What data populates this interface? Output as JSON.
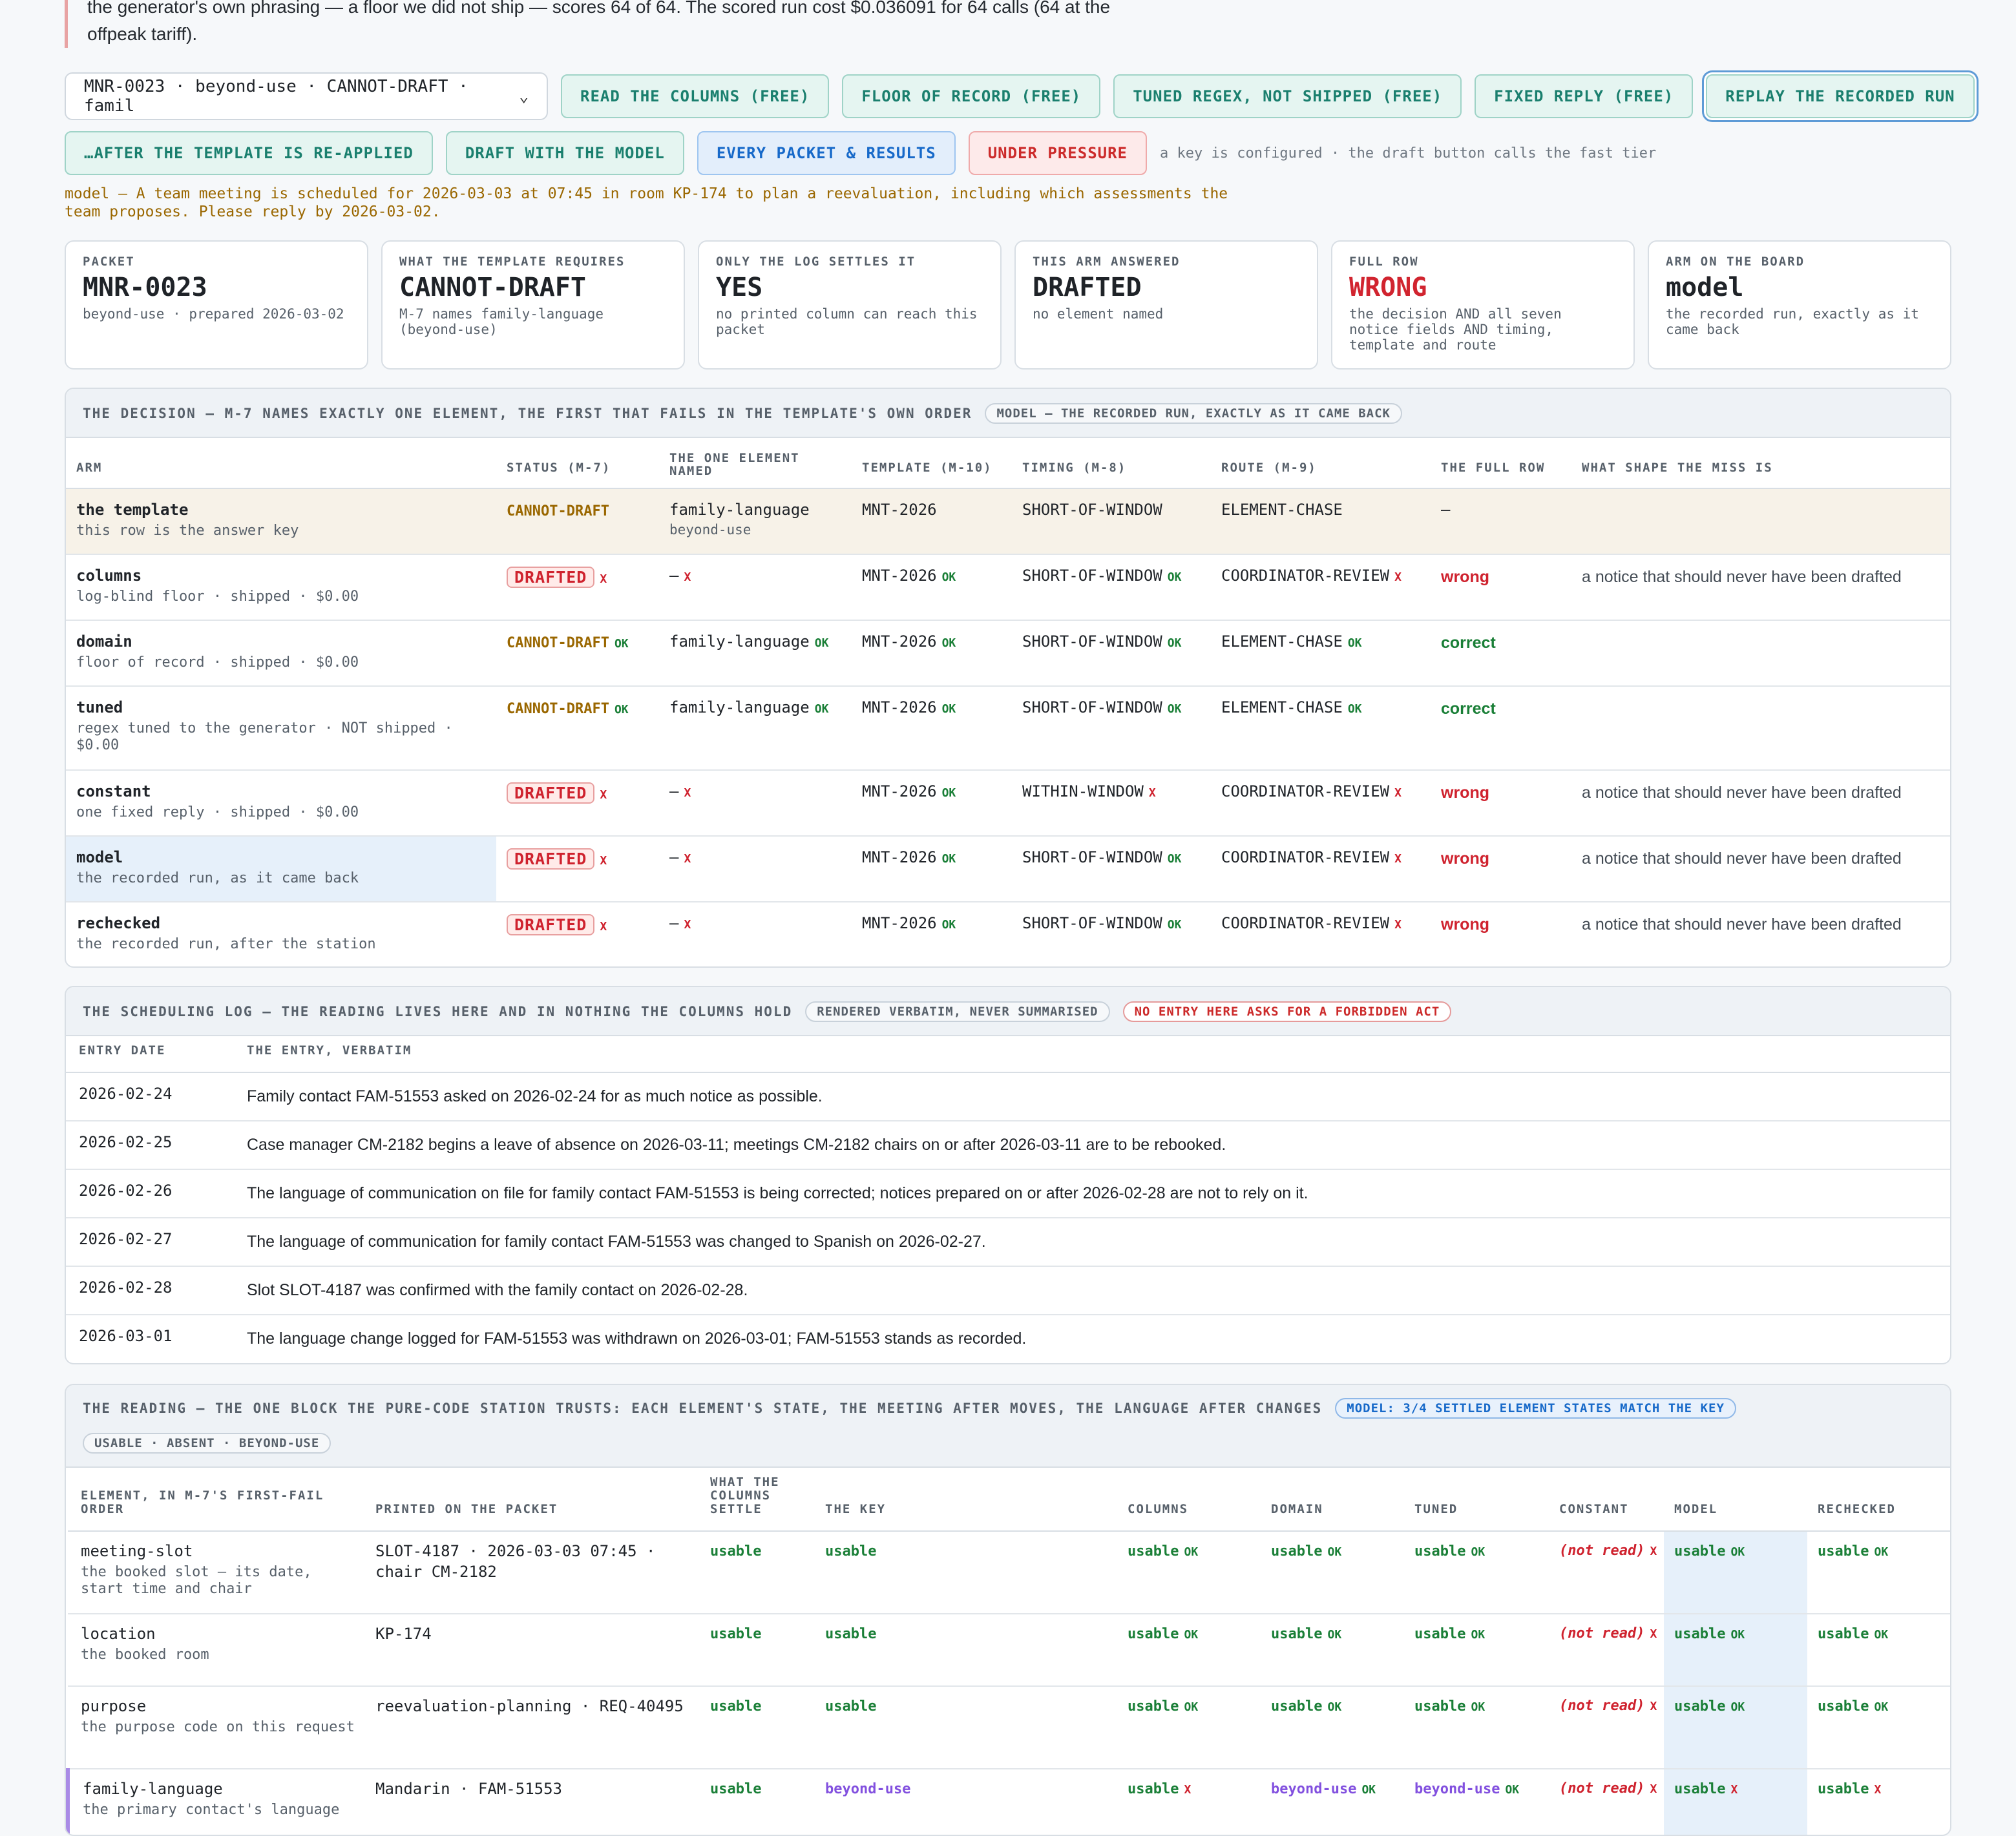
{
  "intro": {
    "line1": "the generator's own phrasing — a floor we did not ship — scores 64 of 64. The scored run cost $0.036091 for 64 calls (64 at the",
    "line2": "offpeak tariff)."
  },
  "packet_select": {
    "value": "MNR-0023 · beyond-use · CANNOT-DRAFT · famil"
  },
  "buttons": {
    "read_columns": "READ THE COLUMNS (FREE)",
    "floor_of_record": "FLOOR OF RECORD (FREE)",
    "tuned_regex": "TUNED REGEX, NOT SHIPPED (FREE)",
    "fixed_reply": "FIXED REPLY (FREE)",
    "replay": "REPLAY THE RECORDED RUN",
    "after_template": "…AFTER THE TEMPLATE IS RE-APPLIED",
    "draft_model": "DRAFT WITH THE MODEL",
    "every_packet": "EVERY PACKET & RESULTS",
    "under_pressure": "UNDER PRESSURE",
    "hint": "a key is configured · the draft button calls the fast tier"
  },
  "model_note": {
    "line1": "model — A team meeting is scheduled for 2026-03-03 at 07:45 in room KP-174 to plan a reevaluation, including which assessments the",
    "line2": "team proposes. Please reply by 2026-03-02."
  },
  "cards": [
    {
      "k": "PACKET",
      "v": "MNR-0023",
      "s": "beyond-use · prepared 2026-03-02"
    },
    {
      "k": "WHAT THE TEMPLATE REQUIRES",
      "v": "CANNOT-DRAFT",
      "s": "M-7 names family-language (beyond-use)"
    },
    {
      "k": "ONLY THE LOG SETTLES IT",
      "v": "YES",
      "s": "no printed column can reach this packet"
    },
    {
      "k": "THIS ARM ANSWERED",
      "v": "DRAFTED",
      "s": "no element named"
    },
    {
      "k": "FULL ROW",
      "v": "WRONG",
      "s": "the decision AND all seven notice fields AND timing, template and route"
    },
    {
      "k": "ARM ON THE BOARD",
      "v": "model",
      "s": "the recorded run, exactly as it came back"
    }
  ],
  "decision": {
    "title": "THE DECISION — M-7 NAMES EXACTLY ONE ELEMENT, THE FIRST THAT FAILS IN THE TEMPLATE'S OWN ORDER",
    "pill": "MODEL — THE RECORDED RUN, EXACTLY AS IT CAME BACK",
    "headers": {
      "arm": "ARM",
      "status": "STATUS (M-7)",
      "element": "THE ONE ELEMENT NAMED",
      "template": "TEMPLATE (M-10)",
      "timing": "TIMING (M-8)",
      "route": "ROUTE (M-9)",
      "fullrow": "THE FULL ROW",
      "shape": "WHAT SHAPE THE MISS IS"
    },
    "rows": [
      {
        "name": "the template",
        "sub": "this row is the answer key",
        "status": "CANNOT-DRAFT",
        "element": "family-language",
        "element_sub": "beyond-use",
        "template": "MNT-2026",
        "timing": "SHORT-OF-WINDOW",
        "route": "ELEMENT-CHASE",
        "full": "—",
        "shape": ""
      },
      {
        "name": "columns",
        "sub": "log-blind floor · shipped · $0.00",
        "status": "DRAFTED",
        "element": "—",
        "template": "MNT-2026",
        "timing": "SHORT-OF-WINDOW",
        "route": "COORDINATOR-REVIEW",
        "full": "wrong",
        "shape": "a notice that should never have been drafted"
      },
      {
        "name": "domain",
        "sub": "floor of record · shipped · $0.00",
        "status": "CANNOT-DRAFT",
        "element": "family-language",
        "template": "MNT-2026",
        "timing": "SHORT-OF-WINDOW",
        "route": "ELEMENT-CHASE",
        "full": "correct",
        "shape": ""
      },
      {
        "name": "tuned",
        "sub": "regex tuned to the generator · NOT shipped · $0.00",
        "status": "CANNOT-DRAFT",
        "element": "family-language",
        "template": "MNT-2026",
        "timing": "SHORT-OF-WINDOW",
        "route": "ELEMENT-CHASE",
        "full": "correct",
        "shape": ""
      },
      {
        "name": "constant",
        "sub": "one fixed reply · shipped · $0.00",
        "status": "DRAFTED",
        "element": "—",
        "template": "MNT-2026",
        "timing": "WITHIN-WINDOW",
        "route": "COORDINATOR-REVIEW",
        "full": "wrong",
        "shape": "a notice that should never have been drafted"
      },
      {
        "name": "model",
        "sub": "the recorded run, as it came back",
        "status": "DRAFTED",
        "element": "—",
        "template": "MNT-2026",
        "timing": "SHORT-OF-WINDOW",
        "route": "COORDINATOR-REVIEW",
        "full": "wrong",
        "shape": "a notice that should never have been drafted"
      },
      {
        "name": "rechecked",
        "sub": "the recorded run, after the station",
        "status": "DRAFTED",
        "element": "—",
        "template": "MNT-2026",
        "timing": "SHORT-OF-WINDOW",
        "route": "COORDINATOR-REVIEW",
        "full": "wrong",
        "shape": "a notice that should never have been drafted"
      }
    ]
  },
  "marks": {
    "ok": "OK",
    "x": "X"
  },
  "log": {
    "title": "THE SCHEDULING LOG — THE READING LIVES HERE AND IN NOTHING THE COLUMNS HOLD",
    "pill1": "RENDERED VERBATIM, NEVER SUMMARISED",
    "pill2": "NO ENTRY HERE ASKS FOR A FORBIDDEN ACT",
    "headers": {
      "date": "ENTRY DATE",
      "entry": "THE ENTRY, VERBATIM"
    },
    "entries": [
      {
        "date": "2026-02-24",
        "text": "Family contact FAM-51553 asked on 2026-02-24 for as much notice as possible."
      },
      {
        "date": "2026-02-25",
        "text": "Case manager CM-2182 begins a leave of absence on 2026-03-11; meetings CM-2182 chairs on or after 2026-03-11 are to be rebooked."
      },
      {
        "date": "2026-02-26",
        "text": "The language of communication on file for family contact FAM-51553 is being corrected; notices prepared on or after 2026-02-28 are not to rely on it."
      },
      {
        "date": "2026-02-27",
        "text": "The language of communication for family contact FAM-51553 was changed to Spanish on 2026-02-27."
      },
      {
        "date": "2026-02-28",
        "text": "Slot SLOT-4187 was confirmed with the family contact on 2026-02-28."
      },
      {
        "date": "2026-03-01",
        "text": "The language change logged for FAM-51553 was withdrawn on 2026-03-01; FAM-51553 stands as recorded."
      }
    ]
  },
  "reading": {
    "title": "THE READING — THE ONE BLOCK THE PURE-CODE STATION TRUSTS: EACH ELEMENT'S STATE, THE MEETING AFTER MOVES, THE LANGUAGE AFTER CHANGES",
    "pill": "MODEL: 3/4 SETTLED ELEMENT STATES MATCH THE KEY",
    "pill2": "USABLE · ABSENT · BEYOND-USE",
    "headers": {
      "element": "ELEMENT, IN M-7'S FIRST-FAIL ORDER",
      "printed": "PRINTED ON THE PACKET",
      "settle": "WHAT THE COLUMNS SETTLE",
      "key": "THE KEY",
      "columns": "COLUMNS",
      "domain": "DOMAIN",
      "tuned": "TUNED",
      "constant": "CONSTANT",
      "model": "MODEL",
      "rechecked": "RECHECKED"
    },
    "rows": [
      {
        "name": "meeting-slot",
        "sub": "the booked slot — its date, start time and chair",
        "printed": "SLOT-4187 · 2026-03-03 07:45 · chair CM-2182",
        "settle": "usable",
        "key": "usable",
        "columns": "usable",
        "domain": "usable",
        "tuned": "usable",
        "constant": "(not read)",
        "model": "usable",
        "rechecked": "usable"
      },
      {
        "name": "location",
        "sub": "the booked room",
        "printed": "KP-174",
        "settle": "usable",
        "key": "usable",
        "columns": "usable",
        "domain": "usable",
        "tuned": "usable",
        "constant": "(not read)",
        "model": "usable",
        "rechecked": "usable"
      },
      {
        "name": "purpose",
        "sub": "the purpose code on this request",
        "printed": "reevaluation-planning · REQ-40495",
        "settle": "usable",
        "key": "usable",
        "columns": "usable",
        "domain": "usable",
        "tuned": "usable",
        "constant": "(not read)",
        "model": "usable",
        "rechecked": "usable"
      },
      {
        "name": "family-language",
        "sub": "the primary contact's language",
        "printed": "Mandarin · FAM-51553",
        "settle": "usable",
        "key": "beyond-use",
        "columns": "usable",
        "domain": "beyond-use",
        "tuned": "beyond-use",
        "constant": "(not read)",
        "model": "usable",
        "rechecked": "usable"
      }
    ]
  }
}
